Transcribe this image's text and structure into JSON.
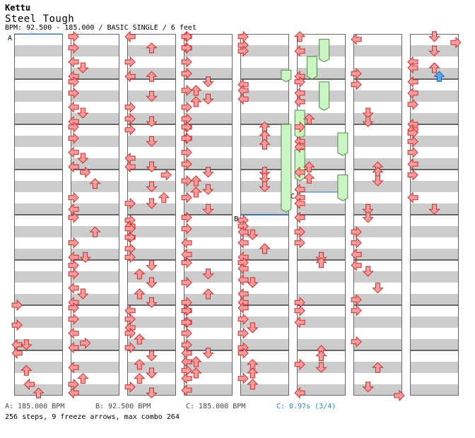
{
  "header": {
    "artist": "Kettu",
    "title": "Steel Tough",
    "info": "BPM: 92.500 - 185.000 / BASIC SINGLE / 6 feet"
  },
  "markers": {
    "a": "A",
    "b": "B",
    "c": "C"
  },
  "footer": {
    "bpm_a": "A: 185.000 BPM",
    "bpm_b": "B: 92.500 BPM",
    "bpm_c": "C: 185.000 BPM",
    "stop_c": "C: 0.97s (3/4)",
    "summary": "256 steps, 9 freeze arrows, max combo 264"
  },
  "colors": {
    "stripe": "#cccccc",
    "border": "#666666",
    "red_fill": "#ff9a9a",
    "red_stroke": "#c03030",
    "blue_fill": "#5aa6f0",
    "blue_stroke": "#1a5fa8",
    "freeze_fill": "#c8f5c0",
    "freeze_stroke": "#4a8a4a",
    "bpm_line": "#2a7fd4",
    "stop_text": "#2a7fd4"
  },
  "chart": {
    "columns": 8,
    "measures_per_column": 8,
    "lanes": [
      "left",
      "down",
      "up",
      "right"
    ],
    "notes": [
      [
        0,
        6,
        0.06,
        "r"
      ],
      [
        0,
        6.44,
        0.06,
        "r"
      ],
      [
        0,
        6.875,
        0.06,
        "l"
      ],
      [
        0,
        6.875,
        0.25,
        "d"
      ],
      [
        0,
        7.06,
        0.06,
        "l"
      ],
      [
        0,
        7.44,
        0.25,
        "u"
      ],
      [
        0,
        7.75,
        0.31,
        "l"
      ],
      [
        0,
        7.94,
        0.5,
        "u"
      ],
      [
        1,
        0.06,
        0.06,
        "r"
      ],
      [
        1,
        0.31,
        0.06,
        "r"
      ],
      [
        1,
        0.62,
        0.06,
        "l"
      ],
      [
        1,
        0.75,
        0.25,
        "d"
      ],
      [
        1,
        0.94,
        0.06,
        "l"
      ],
      [
        1,
        1.06,
        0.06,
        "r"
      ],
      [
        1,
        1.31,
        0.06,
        "r"
      ],
      [
        1,
        1.62,
        0.06,
        "l"
      ],
      [
        1,
        1.75,
        0.25,
        "d"
      ],
      [
        1,
        1.94,
        0.06,
        "l"
      ],
      [
        1,
        2.06,
        0.06,
        "r"
      ],
      [
        1,
        2.31,
        0.06,
        "r"
      ],
      [
        1,
        2.62,
        0.06,
        "l"
      ],
      [
        1,
        2.75,
        0.25,
        "d"
      ],
      [
        1,
        2.94,
        0.06,
        "l"
      ],
      [
        1,
        3.06,
        0.3,
        "r"
      ],
      [
        1,
        3.31,
        0.5,
        "u"
      ],
      [
        1,
        3.62,
        0.06,
        "r"
      ],
      [
        1,
        3.88,
        0.06,
        "l"
      ],
      [
        1,
        4.06,
        0.06,
        "r"
      ],
      [
        1,
        4.38,
        0.5,
        "u"
      ],
      [
        1,
        4.62,
        0.06,
        "r"
      ],
      [
        1,
        4.94,
        0.06,
        "l"
      ],
      [
        1,
        4.94,
        0.3,
        "d"
      ],
      [
        1,
        5.12,
        0.06,
        "r"
      ],
      [
        1,
        5.31,
        0.06,
        "r"
      ],
      [
        1,
        5.62,
        0.06,
        "l"
      ],
      [
        1,
        5.75,
        0.25,
        "d"
      ],
      [
        1,
        5.94,
        0.06,
        "l"
      ],
      [
        1,
        6.06,
        0.06,
        "r"
      ],
      [
        1,
        6.31,
        0.06,
        "r"
      ],
      [
        1,
        6.62,
        0.06,
        "l"
      ],
      [
        1,
        6.84,
        0.3,
        "r"
      ],
      [
        1,
        6.94,
        0.06,
        "l"
      ],
      [
        1,
        7.38,
        0.06,
        "l"
      ],
      [
        1,
        7.62,
        0.25,
        "u"
      ],
      [
        1,
        7.75,
        0.06,
        "r"
      ],
      [
        1,
        7.94,
        0.06,
        "l"
      ],
      [
        2,
        0.06,
        0.06,
        "l"
      ],
      [
        2,
        0.31,
        0.5,
        "u"
      ],
      [
        2,
        0.62,
        0.06,
        "r"
      ],
      [
        2,
        0.94,
        0.06,
        "l"
      ],
      [
        2,
        0.94,
        0.5,
        "u"
      ],
      [
        2,
        1.38,
        0.5,
        "d"
      ],
      [
        2,
        1.62,
        0.06,
        "r"
      ],
      [
        2,
        1.88,
        0.06,
        "r"
      ],
      [
        2,
        1.94,
        0.5,
        "d"
      ],
      [
        2,
        2.12,
        0.06,
        "r"
      ],
      [
        2,
        2.38,
        0.5,
        "d"
      ],
      [
        2,
        2.75,
        0.06,
        "l"
      ],
      [
        2,
        2.94,
        0.06,
        "l"
      ],
      [
        2,
        2.94,
        0.5,
        "d"
      ],
      [
        2,
        3.12,
        0.8,
        "r"
      ],
      [
        2,
        3.38,
        0.5,
        "d"
      ],
      [
        2,
        3.62,
        0.75,
        "u"
      ],
      [
        2,
        3.75,
        0.5,
        "d"
      ],
      [
        2,
        3.75,
        0.06,
        "r"
      ],
      [
        2,
        4.12,
        0.06,
        "r"
      ],
      [
        2,
        4.25,
        0.06,
        "l"
      ],
      [
        2,
        4.31,
        0.06,
        "r"
      ],
      [
        2,
        4.5,
        0.06,
        "l"
      ],
      [
        2,
        4.5,
        0.06,
        "r"
      ],
      [
        2,
        4.75,
        0.06,
        "r"
      ],
      [
        2,
        4.94,
        0.06,
        "r"
      ],
      [
        2,
        5.12,
        0.5,
        "d"
      ],
      [
        2,
        5.31,
        0.25,
        "u"
      ],
      [
        2,
        5.5,
        0.5,
        "d"
      ],
      [
        2,
        5.75,
        0.25,
        "u"
      ],
      [
        2,
        5.94,
        0.5,
        "d"
      ],
      [
        2,
        6.12,
        0.06,
        "l"
      ],
      [
        2,
        6.31,
        0.06,
        "r"
      ],
      [
        2,
        6.5,
        0.06,
        "l"
      ],
      [
        2,
        6.62,
        0.06,
        "r"
      ],
      [
        2,
        6.75,
        0.25,
        "u"
      ],
      [
        2,
        6.94,
        0.06,
        "r"
      ],
      [
        2,
        7.12,
        0.5,
        "d"
      ],
      [
        2,
        7.31,
        0.25,
        "u"
      ],
      [
        2,
        7.5,
        0.5,
        "d"
      ],
      [
        2,
        7.62,
        0.25,
        "u"
      ],
      [
        2,
        7.81,
        0.06,
        "r"
      ],
      [
        2,
        7.94,
        0.5,
        "d"
      ],
      [
        3,
        0.06,
        0.06,
        "l"
      ],
      [
        3,
        0.06,
        0.06,
        "r"
      ],
      [
        3,
        0.31,
        0.06,
        "l"
      ],
      [
        3,
        0.31,
        0.06,
        "r"
      ],
      [
        3,
        0.62,
        0.06,
        "r"
      ],
      [
        3,
        0.88,
        0.06,
        "r"
      ],
      [
        3,
        1.06,
        0.5,
        "d"
      ],
      [
        3,
        1.25,
        0.25,
        "u"
      ],
      [
        3,
        1.25,
        0.06,
        "r"
      ],
      [
        3,
        1.44,
        0.5,
        "d"
      ],
      [
        3,
        1.5,
        0.25,
        "u"
      ],
      [
        3,
        1.62,
        0.06,
        "r"
      ],
      [
        3,
        1.88,
        0.06,
        "r"
      ],
      [
        3,
        2.06,
        0.06,
        "l"
      ],
      [
        3,
        2.06,
        0.06,
        "r"
      ],
      [
        3,
        2.31,
        0.06,
        "l"
      ],
      [
        3,
        2.31,
        0.06,
        "r"
      ],
      [
        3,
        2.62,
        0.06,
        "r"
      ],
      [
        3,
        2.88,
        0.06,
        "r"
      ],
      [
        3,
        3.06,
        0.5,
        "d"
      ],
      [
        3,
        3.25,
        0.25,
        "u"
      ],
      [
        3,
        3.25,
        0.06,
        "r"
      ],
      [
        3,
        3.44,
        0.5,
        "d"
      ],
      [
        3,
        3.5,
        0.25,
        "u"
      ],
      [
        3,
        3.62,
        0.06,
        "r"
      ],
      [
        3,
        3.88,
        0.5,
        "d"
      ],
      [
        3,
        4.06,
        0.06,
        "r"
      ],
      [
        3,
        4.31,
        0.06,
        "r"
      ],
      [
        3,
        4.62,
        0.06,
        "l"
      ],
      [
        3,
        4.88,
        0.06,
        "l"
      ],
      [
        3,
        5.06,
        0.06,
        "r"
      ],
      [
        3,
        5.31,
        0.5,
        "d"
      ],
      [
        3,
        5.5,
        0.06,
        "r"
      ],
      [
        3,
        5.75,
        0.5,
        "u"
      ],
      [
        3,
        5.94,
        0.06,
        "r"
      ],
      [
        3,
        6.12,
        0.06,
        "l"
      ],
      [
        3,
        6.12,
        0.06,
        "r"
      ],
      [
        3,
        6.38,
        0.06,
        "l"
      ],
      [
        3,
        6.38,
        0.06,
        "r"
      ],
      [
        3,
        6.62,
        0.06,
        "r"
      ],
      [
        3,
        6.88,
        0.06,
        "r"
      ],
      [
        3,
        7.06,
        0.06,
        "l"
      ],
      [
        3,
        7.06,
        0.5,
        "d"
      ],
      [
        3,
        7.25,
        0.06,
        "l"
      ],
      [
        3,
        7.25,
        0.25,
        "u"
      ],
      [
        3,
        7.44,
        0.06,
        "r"
      ],
      [
        3,
        7.5,
        0.25,
        "u"
      ],
      [
        3,
        7.62,
        0.06,
        "l"
      ],
      [
        3,
        7.88,
        0.06,
        "l"
      ],
      [
        4,
        0.06,
        0.06,
        "r"
      ],
      [
        4,
        0.25,
        0.06,
        "r"
      ],
      [
        4,
        0.38,
        0.06,
        "r"
      ],
      [
        4,
        1.12,
        0.06,
        "l"
      ],
      [
        4,
        1.25,
        0.06,
        "l"
      ],
      [
        4,
        1.44,
        0.06,
        "l"
      ],
      [
        4,
        2.06,
        0.5,
        "u"
      ],
      [
        4,
        2.25,
        0.5,
        "u"
      ],
      [
        4,
        2.44,
        0.5,
        "u"
      ],
      [
        4,
        3.06,
        0.5,
        "d"
      ],
      [
        4,
        3.19,
        0.5,
        "d"
      ],
      [
        4,
        3.38,
        0.5,
        "d"
      ],
      [
        4,
        4.12,
        0.06,
        "r"
      ],
      [
        4,
        4.25,
        0.06,
        "r"
      ],
      [
        4,
        4.38,
        0.06,
        "l"
      ],
      [
        4,
        4.44,
        0.25,
        "d"
      ],
      [
        4,
        4.62,
        0.06,
        "l"
      ],
      [
        4,
        4.75,
        0.5,
        "u"
      ],
      [
        4,
        4.94,
        0.06,
        "l"
      ],
      [
        4,
        5.06,
        0.06,
        "r"
      ],
      [
        4,
        5.19,
        0.06,
        "l"
      ],
      [
        4,
        5.44,
        0.06,
        "l"
      ],
      [
        4,
        5.5,
        0.25,
        "d"
      ],
      [
        4,
        5.75,
        0.06,
        "l"
      ],
      [
        4,
        5.94,
        0.06,
        "l"
      ],
      [
        4,
        6.06,
        0.06,
        "l"
      ],
      [
        4,
        6.31,
        0.06,
        "r"
      ],
      [
        4,
        6.5,
        0.25,
        "d"
      ],
      [
        4,
        6.62,
        0.06,
        "r"
      ],
      [
        4,
        6.94,
        0.06,
        "r"
      ],
      [
        4,
        7.06,
        0.06,
        "r"
      ],
      [
        4,
        7.31,
        0.25,
        "u"
      ],
      [
        4,
        7.5,
        0.25,
        "u"
      ],
      [
        4,
        7.62,
        0.06,
        "r"
      ],
      [
        4,
        7.75,
        0.25,
        "u"
      ],
      [
        5,
        0.06,
        0.06,
        "u"
      ],
      [
        5,
        0.38,
        0.06,
        "l"
      ],
      [
        5,
        0.94,
        0.06,
        "l"
      ],
      [
        5,
        1.06,
        0.06,
        "r"
      ],
      [
        5,
        1.31,
        0.06,
        "l"
      ],
      [
        5,
        1.5,
        0.06,
        "l"
      ],
      [
        5,
        1.88,
        0.25,
        "u"
      ],
      [
        5,
        2.06,
        0.06,
        "r"
      ],
      [
        5,
        2.38,
        0.06,
        "l"
      ],
      [
        5,
        2.5,
        0.06,
        "l"
      ],
      [
        5,
        2.94,
        0.25,
        "u"
      ],
      [
        5,
        3.06,
        0.06,
        "l"
      ],
      [
        5,
        3.19,
        0.25,
        "u"
      ],
      [
        5,
        3.44,
        0.06,
        "l"
      ],
      [
        5,
        3.62,
        0.06,
        "l"
      ],
      [
        5,
        3.75,
        0.06,
        "l"
      ],
      [
        5,
        4.06,
        0.06,
        "l"
      ],
      [
        5,
        4.38,
        0.06,
        "r"
      ],
      [
        5,
        4.62,
        0.06,
        "r"
      ],
      [
        5,
        4.94,
        0.5,
        "d"
      ],
      [
        5,
        5.06,
        0.5,
        "u"
      ],
      [
        5,
        5.94,
        0.06,
        "r"
      ],
      [
        5,
        6.12,
        0.06,
        "r"
      ],
      [
        5,
        6.38,
        0.06,
        "l"
      ],
      [
        5,
        7.0,
        0.5,
        "u"
      ],
      [
        5,
        7.12,
        0.5,
        "u"
      ],
      [
        5,
        7.31,
        0.06,
        "r"
      ],
      [
        5,
        7.38,
        0.5,
        "d"
      ],
      [
        5,
        7.94,
        0.06,
        "l"
      ],
      [
        6,
        0.12,
        0.06,
        "l"
      ],
      [
        6,
        0.88,
        0.06,
        "r"
      ],
      [
        6,
        1.12,
        0.06,
        "r"
      ],
      [
        6,
        1.75,
        0.3,
        "d"
      ],
      [
        6,
        1.94,
        0.3,
        "d"
      ],
      [
        6,
        2.94,
        0.5,
        "u"
      ],
      [
        6,
        3.06,
        0.5,
        "u"
      ],
      [
        6,
        3.25,
        0.5,
        "d"
      ],
      [
        6,
        3.88,
        0.3,
        "d"
      ],
      [
        6,
        4.06,
        0.3,
        "d"
      ],
      [
        6,
        4.38,
        0.06,
        "r"
      ],
      [
        6,
        4.62,
        0.06,
        "r"
      ],
      [
        6,
        4.88,
        0.06,
        "l"
      ],
      [
        6,
        5.12,
        0.06,
        "l"
      ],
      [
        6,
        5.25,
        0.3,
        "d"
      ],
      [
        6,
        5.62,
        0.5,
        "d"
      ],
      [
        6,
        5.88,
        0.06,
        "r"
      ],
      [
        6,
        6.12,
        0.06,
        "r"
      ],
      [
        6,
        6.81,
        0.06,
        "r"
      ],
      [
        6,
        7.38,
        0.5,
        "u"
      ],
      [
        6,
        7.81,
        0.3,
        "d"
      ],
      [
        6,
        8.0,
        0.94,
        "r"
      ],
      [
        7,
        0.06,
        0.5,
        "d"
      ],
      [
        7,
        0.19,
        0.94,
        "r"
      ],
      [
        7,
        0.38,
        0.5,
        "d"
      ],
      [
        7,
        0.62,
        0.06,
        "l"
      ],
      [
        7,
        0.75,
        0.06,
        "l"
      ],
      [
        7,
        0.75,
        0.5,
        "u"
      ],
      [
        7,
        0.94,
        0.6,
        "u"
      ],
      [
        7,
        1.06,
        0.06,
        "l"
      ],
      [
        7,
        1.31,
        0.06,
        "l"
      ],
      [
        7,
        1.56,
        0.06,
        "r"
      ],
      [
        7,
        2.0,
        0.06,
        "l"
      ],
      [
        7,
        2.12,
        0.06,
        "l"
      ],
      [
        7,
        2.19,
        0.06,
        "r"
      ],
      [
        7,
        2.38,
        0.06,
        "r"
      ],
      [
        7,
        2.62,
        0.06,
        "r"
      ],
      [
        7,
        2.88,
        0.06,
        "l"
      ],
      [
        7,
        3.12,
        0.06,
        "r"
      ],
      [
        7,
        3.62,
        0.06,
        "l"
      ],
      [
        7,
        3.88,
        0.5,
        "d"
      ]
    ],
    "freezes": [
      [
        4,
        0.8,
        1.06,
        0.94
      ],
      [
        4,
        2.0,
        3.94,
        0.94
      ],
      [
        5,
        0.12,
        0.62,
        0.56
      ],
      [
        5,
        0.5,
        1.0,
        0.31
      ],
      [
        5,
        1.06,
        1.69,
        0.56
      ],
      [
        5,
        1.69,
        2.31,
        0.06
      ],
      [
        5,
        2.19,
        2.69,
        0.94
      ],
      [
        5,
        2.56,
        3.25,
        0.06
      ],
      [
        5,
        3.12,
        3.69,
        0.94
      ]
    ]
  }
}
